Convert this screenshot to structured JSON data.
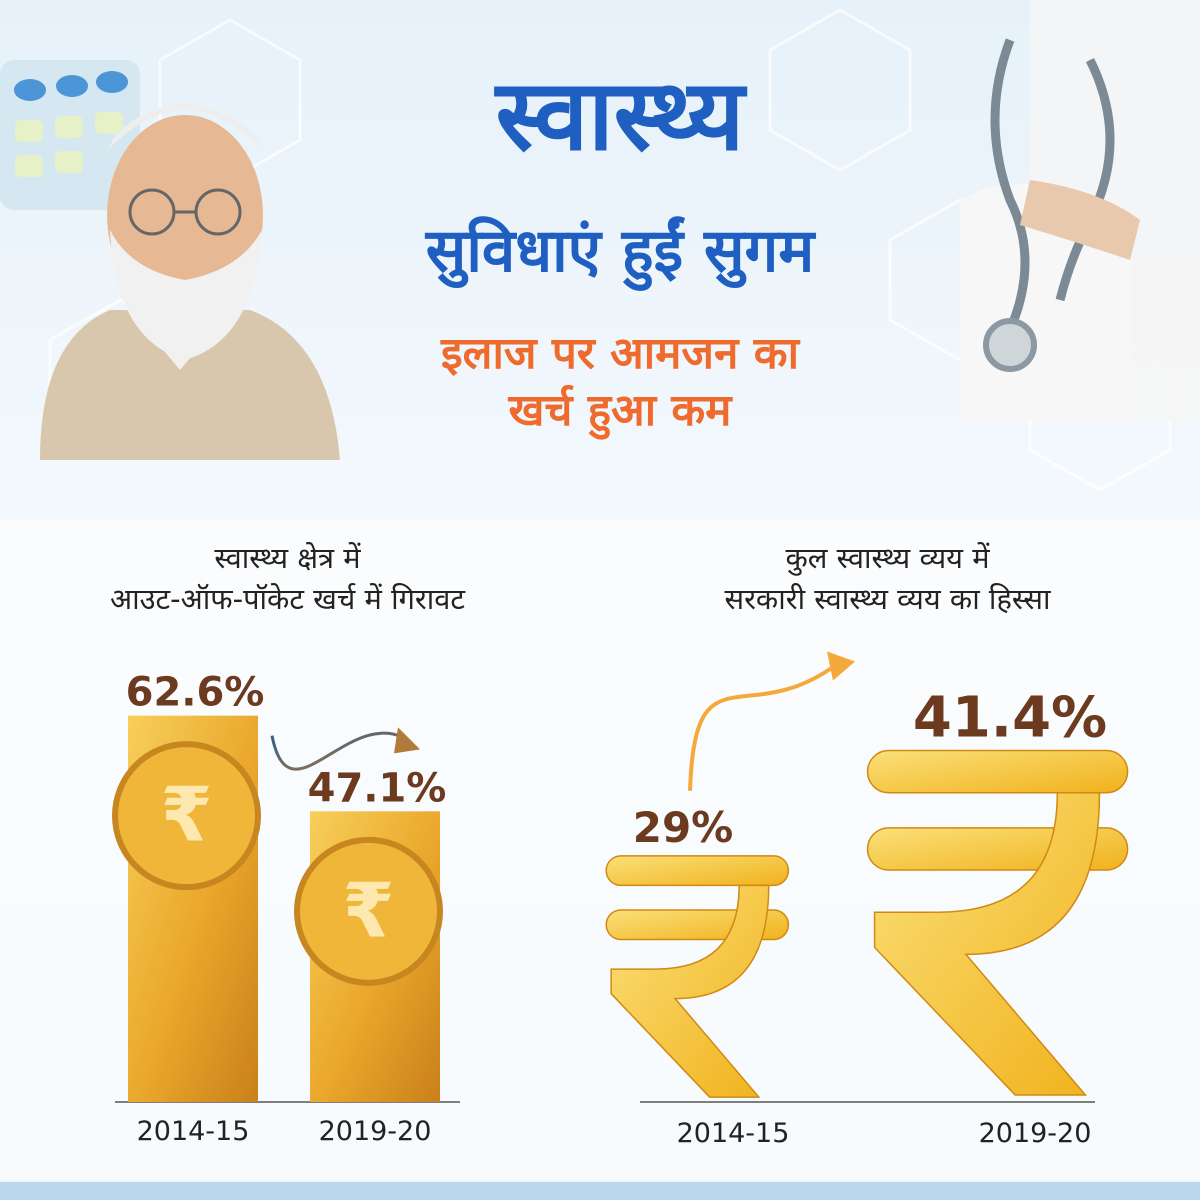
{
  "header": {
    "title_line1": "स्वास्थ्य",
    "title_line2": "सुविधाएं हुईं सुगम",
    "tagline_line1": "इलाज पर आमजन का",
    "tagline_line2": "खर्च हुआ कम"
  },
  "colors": {
    "title_blue": "#1f5fc1",
    "tagline_orange": "#ef6b2d",
    "value_brown": "#6b3a1f",
    "gold": "#f2b531",
    "arrow_gold": "#f4a93a",
    "arrow_blue": "#2d5d8a"
  },
  "chart_data": [
    {
      "type": "bar",
      "title_line1": "स्वास्थ्य क्षेत्र में",
      "title_line2": "आउट-ऑफ-पॉकेट खर्च में गिरावट",
      "categories": [
        "2014-15",
        "2019-20"
      ],
      "values": [
        62.6,
        47.1
      ],
      "value_labels": [
        "62.6%",
        "47.1%"
      ],
      "ylim": [
        0,
        70
      ],
      "marker_icon": "coin-rupee-icon"
    },
    {
      "type": "bar",
      "title_line1": "कुल स्वास्थ्य व्यय में",
      "title_line2": "सरकारी स्वास्थ्य व्यय का हिस्सा",
      "categories": [
        "2014-15",
        "2019-20"
      ],
      "values": [
        29,
        41.4
      ],
      "value_labels": [
        "29%",
        "41.4%"
      ],
      "ylim": [
        0,
        45
      ],
      "marker_icon": "rupee-symbol-icon"
    }
  ]
}
